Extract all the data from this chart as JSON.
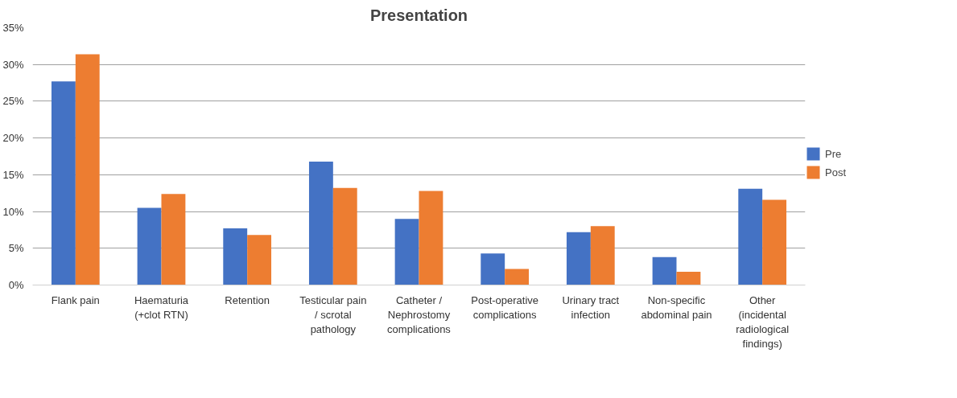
{
  "chart_data": {
    "type": "bar",
    "title": "Presentation",
    "categories": [
      "Flank pain",
      "Haematuria (+clot RTN)",
      "Retention",
      "Testicular pain / scrotal pathology",
      "Catheter / Nephrostomy complications",
      "Post-operative complications",
      "Urinary tract infection",
      "Non-specific abdominal pain",
      "Other (incidental radiological findings)"
    ],
    "series": [
      {
        "name": "Pre",
        "color": "#4472c4",
        "values": [
          27.7,
          10.5,
          7.7,
          16.8,
          9.0,
          4.3,
          7.2,
          3.8,
          13.1
        ]
      },
      {
        "name": "Post",
        "color": "#ed7d31",
        "values": [
          31.4,
          12.4,
          6.8,
          13.2,
          12.8,
          2.2,
          8.0,
          1.8,
          11.6
        ]
      }
    ],
    "ylim": [
      0,
      35
    ],
    "yticks": [
      {
        "value": 0,
        "label": "0%"
      },
      {
        "value": 5,
        "label": "5%"
      },
      {
        "value": 10,
        "label": "10%"
      },
      {
        "value": 15,
        "label": "15%"
      },
      {
        "value": 20,
        "label": "20%"
      },
      {
        "value": 25,
        "label": "25%"
      },
      {
        "value": 30,
        "label": "30%"
      },
      {
        "value": 35,
        "label": "35%"
      }
    ],
    "grid": "y",
    "legend": "right"
  }
}
